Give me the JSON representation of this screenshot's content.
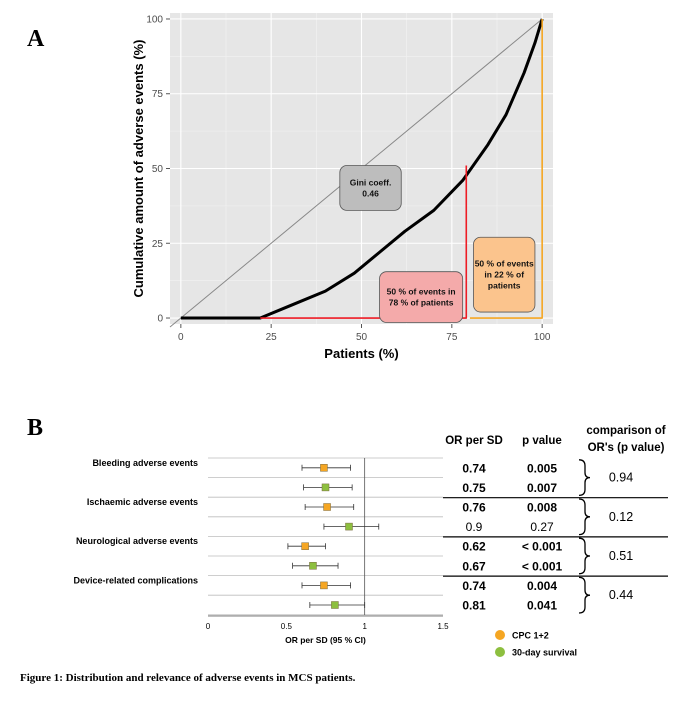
{
  "panel_a_label": "A",
  "panel_b_label": "B",
  "caption": "Figure 1: Distribution and relevance of adverse events in MCS patients.",
  "chart_data": [
    {
      "type": "line",
      "title": "",
      "xlabel": "Patients (%)",
      "ylabel": "Cumulative amount of adverse events (%)",
      "xlim": [
        -3,
        103
      ],
      "ylim": [
        -2,
        102
      ],
      "x_ticks": [
        "0",
        "25",
        "50",
        "75",
        "100"
      ],
      "y_ticks": [
        "0",
        "25",
        "50",
        "75",
        "100"
      ],
      "grid": true,
      "background": "#e6e6e6",
      "series": [
        {
          "role": "equality",
          "color": "#888888",
          "x": [
            -3,
            100
          ],
          "y": [
            -3,
            100
          ]
        },
        {
          "role": "lorenz",
          "color": "#000000",
          "x": [
            0,
            22,
            30,
            40,
            48,
            55,
            62,
            70,
            78,
            85,
            90,
            95,
            98,
            100
          ],
          "y": [
            0,
            0,
            4,
            9,
            15,
            22,
            29,
            36,
            46,
            58,
            68,
            82,
            92,
            100
          ]
        },
        {
          "role": "marker-78",
          "color": "#ee1c25",
          "x": [
            22,
            79,
            79
          ],
          "y": [
            0,
            0,
            51
          ]
        },
        {
          "role": "marker-22",
          "color": "#f5a623",
          "x": [
            80,
            100,
            100
          ],
          "y": [
            0,
            0,
            100
          ]
        }
      ],
      "annotations": [
        {
          "id": "gini",
          "lines": [
            "Gini coeff.",
            "0.46"
          ],
          "fill": "#bdbdbd"
        },
        {
          "id": "events78",
          "lines": [
            "50 % of events in",
            "78 % of patients"
          ],
          "fill": "#f4aaaa"
        },
        {
          "id": "events22",
          "lines": [
            "50 % of events",
            "in 22 % of",
            "patients"
          ],
          "fill": "#fbc48d"
        }
      ]
    },
    {
      "type": "forest",
      "xlabel": "OR per SD (95 % CI)",
      "xlim": [
        0,
        1.5
      ],
      "x_ticks": [
        "0",
        "0.5",
        "1",
        "1.5"
      ],
      "reference_line": 1,
      "headers": {
        "or": "OR per SD",
        "p": "p value",
        "comparison": [
          "comparison of",
          "OR's (p value)"
        ]
      },
      "groups": [
        {
          "name": "Bleeding adverse events",
          "comparison": "0.94",
          "rows": [
            {
              "series": "CPC 1+2",
              "or": 0.74,
              "lo": 0.6,
              "hi": 0.91,
              "or_label": "0.74",
              "p_label": "0.005",
              "bold": true
            },
            {
              "series": "30-day survival",
              "or": 0.75,
              "lo": 0.61,
              "hi": 0.92,
              "or_label": "0.75",
              "p_label": "0.007",
              "bold": true
            }
          ]
        },
        {
          "name": "Ischaemic adverse events",
          "comparison": "0.12",
          "rows": [
            {
              "series": "CPC 1+2",
              "or": 0.76,
              "lo": 0.62,
              "hi": 0.93,
              "or_label": "0.76",
              "p_label": "0.008",
              "bold": true
            },
            {
              "series": "30-day survival",
              "or": 0.9,
              "lo": 0.74,
              "hi": 1.09,
              "or_label": "0.9",
              "p_label": "0.27",
              "bold": false
            }
          ]
        },
        {
          "name": "Neurological adverse events",
          "comparison": "0.51",
          "rows": [
            {
              "series": "CPC 1+2",
              "or": 0.62,
              "lo": 0.51,
              "hi": 0.75,
              "or_label": "0.62",
              "p_label": "< 0.001",
              "bold": true
            },
            {
              "series": "30-day survival",
              "or": 0.67,
              "lo": 0.54,
              "hi": 0.83,
              "or_label": "0.67",
              "p_label": "< 0.001",
              "bold": true
            }
          ]
        },
        {
          "name": "Device-related complications",
          "comparison": "0.44",
          "rows": [
            {
              "series": "CPC 1+2",
              "or": 0.74,
              "lo": 0.6,
              "hi": 0.91,
              "or_label": "0.74",
              "p_label": "0.004",
              "bold": true
            },
            {
              "series": "30-day survival",
              "or": 0.81,
              "lo": 0.65,
              "hi": 1.0,
              "or_label": "0.81",
              "p_label": "0.041",
              "bold": true
            }
          ]
        }
      ],
      "legend": [
        {
          "name": "CPC 1+2",
          "color": "#f5a623"
        },
        {
          "name": "30-day survival",
          "color": "#8dbf3f"
        }
      ]
    }
  ]
}
